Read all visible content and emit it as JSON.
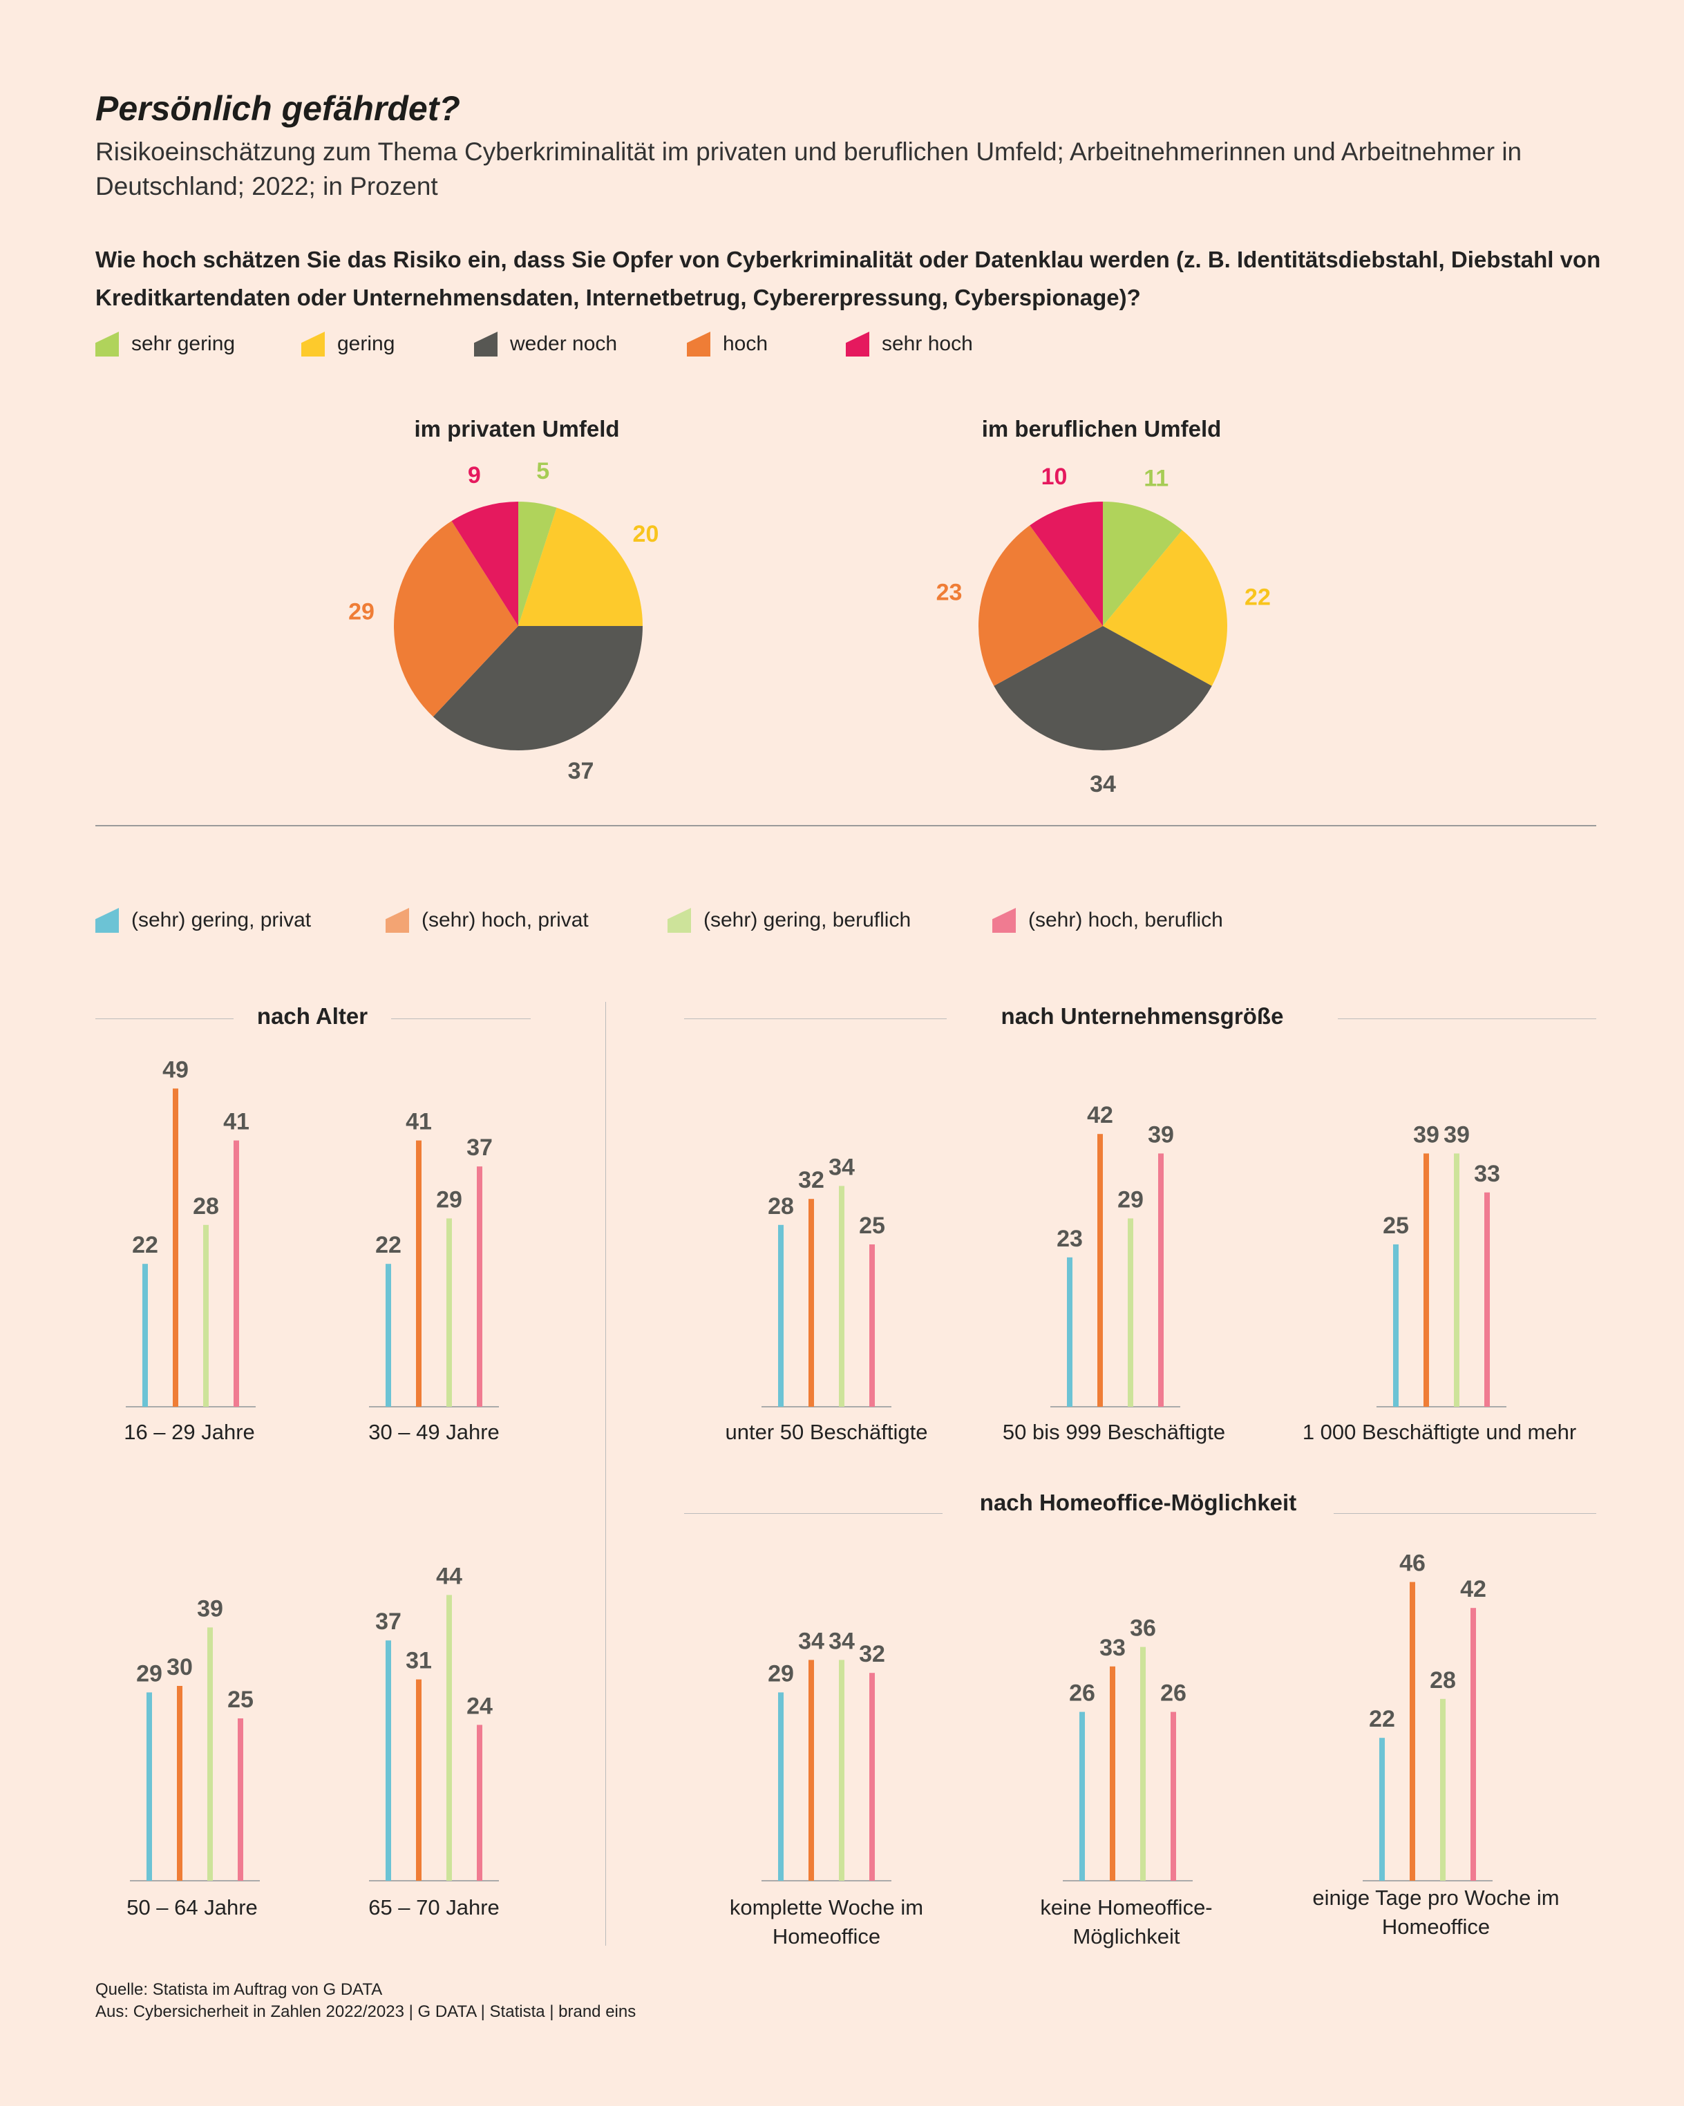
{
  "header": {
    "title": "Persönlich gefährdet?",
    "subtitle": "Risikoeinschätzung zum Thema Cyberkriminalität im privaten und beruflichen Umfeld; Arbeitnehmerinnen und Arbeitnehmer in Deutschland; 2022; in Prozent",
    "question": "Wie hoch schätzen Sie das Risiko ein, dass Sie Opfer von Cyberkriminalität oder Datenklau werden (z. B. Identitätsdiebstahl, Diebstahl von Kreditkartendaten oder Unternehmensdaten, Internetbetrug, Cybererpressung, Cyberspionage)?"
  },
  "legend_top": [
    {
      "label": "sehr gering",
      "color": "#b0d35b"
    },
    {
      "label": "gering",
      "color": "#fdca2c"
    },
    {
      "label": "weder noch",
      "color": "#575753"
    },
    {
      "label": "hoch",
      "color": "#ef7d36"
    },
    {
      "label": "sehr hoch",
      "color": "#e5195e"
    }
  ],
  "legend_bottom": [
    {
      "label": "(sehr) gering, privat",
      "color": "#6cc3d5"
    },
    {
      "label": "(sehr) hoch, privat",
      "color": "#f3a473"
    },
    {
      "label": "(sehr) gering, beruflich",
      "color": "#cde39a"
    },
    {
      "label": "(sehr) hoch, beruflich",
      "color": "#f07b91"
    }
  ],
  "sections": {
    "age": "nach Alter",
    "size": "nach Unternehmensgröße",
    "homeoffice": "nach Homeoffice-Möglichkeit"
  },
  "chart_data": [
    {
      "type": "pie",
      "title": "im privaten Umfeld",
      "categories": [
        "sehr gering",
        "gering",
        "weder noch",
        "hoch",
        "sehr hoch"
      ],
      "values": [
        5,
        20,
        37,
        29,
        9
      ]
    },
    {
      "type": "pie",
      "title": "im beruflichen Umfeld",
      "categories": [
        "sehr gering",
        "gering",
        "weder noch",
        "hoch",
        "sehr hoch"
      ],
      "values": [
        11,
        22,
        34,
        23,
        10
      ]
    },
    {
      "type": "bar",
      "title": "nach Alter",
      "categories": [
        "16 – 29 Jahre",
        "30 – 49 Jahre",
        "50 – 64 Jahre",
        "65 – 70 Jahre"
      ],
      "series": [
        {
          "name": "(sehr) gering, privat",
          "values": [
            22,
            22,
            29,
            37
          ]
        },
        {
          "name": "(sehr) hoch, privat",
          "values": [
            49,
            41,
            30,
            31
          ]
        },
        {
          "name": "(sehr) gering, beruflich",
          "values": [
            28,
            29,
            39,
            44
          ]
        },
        {
          "name": "(sehr) hoch, beruflich",
          "values": [
            41,
            37,
            25,
            24
          ]
        }
      ]
    },
    {
      "type": "bar",
      "title": "nach Unternehmensgröße",
      "categories": [
        "unter 50 Beschäftigte",
        "50 bis 999 Beschäftigte",
        "1 000 Beschäftigte und mehr"
      ],
      "series": [
        {
          "name": "(sehr) gering, privat",
          "values": [
            28,
            23,
            25
          ]
        },
        {
          "name": "(sehr) hoch, privat",
          "values": [
            32,
            42,
            39
          ]
        },
        {
          "name": "(sehr) gering, beruflich",
          "values": [
            34,
            29,
            39
          ]
        },
        {
          "name": "(sehr) hoch, beruflich",
          "values": [
            25,
            39,
            33
          ]
        }
      ]
    },
    {
      "type": "bar",
      "title": "nach Homeoffice-Möglichkeit",
      "categories": [
        "komplette Woche im Homeoffice",
        "keine Homeoffice-Möglichkeit",
        "einige Tage pro Woche im Homeoffice"
      ],
      "series": [
        {
          "name": "(sehr) gering, privat",
          "values": [
            29,
            26,
            22
          ]
        },
        {
          "name": "(sehr) hoch, privat",
          "values": [
            34,
            33,
            46
          ]
        },
        {
          "name": "(sehr) gering, beruflich",
          "values": [
            34,
            36,
            28
          ]
        },
        {
          "name": "(sehr) hoch, beruflich",
          "values": [
            32,
            26,
            42
          ]
        }
      ]
    }
  ],
  "footer": {
    "source": "Quelle: Statista im Auftrag von G DATA",
    "from": "Aus: Cybersicherheit in Zahlen 2022/2023 | G DATA | Statista | brand eins"
  }
}
